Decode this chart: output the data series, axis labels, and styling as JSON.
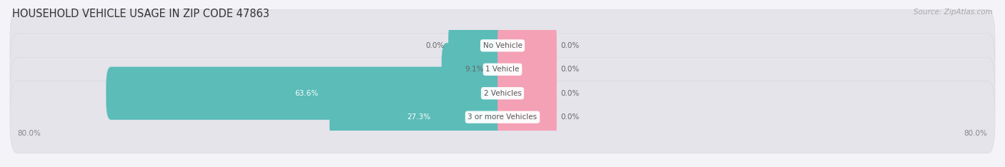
{
  "title": "HOUSEHOLD VEHICLE USAGE IN ZIP CODE 47863",
  "source": "Source: ZipAtlas.com",
  "categories": [
    "No Vehicle",
    "1 Vehicle",
    "2 Vehicles",
    "3 or more Vehicles"
  ],
  "owner_values": [
    0.0,
    9.1,
    63.6,
    27.3
  ],
  "renter_values": [
    0.0,
    0.0,
    0.0,
    0.0
  ],
  "owner_color": "#5bbcb8",
  "renter_color": "#f4a0b5",
  "bar_bg_color": "#e4e4ea",
  "bar_bg_outline": "#d8d8df",
  "axis_min": -80.0,
  "axis_max": 80.0,
  "min_stub": 8.0,
  "title_fontsize": 10.5,
  "source_fontsize": 7.5,
  "label_fontsize": 7.5,
  "category_fontsize": 7.5,
  "legend_fontsize": 8,
  "bar_height": 0.62,
  "background_color": "#f4f4f8",
  "text_color": "#666666",
  "white_label_threshold": 25
}
